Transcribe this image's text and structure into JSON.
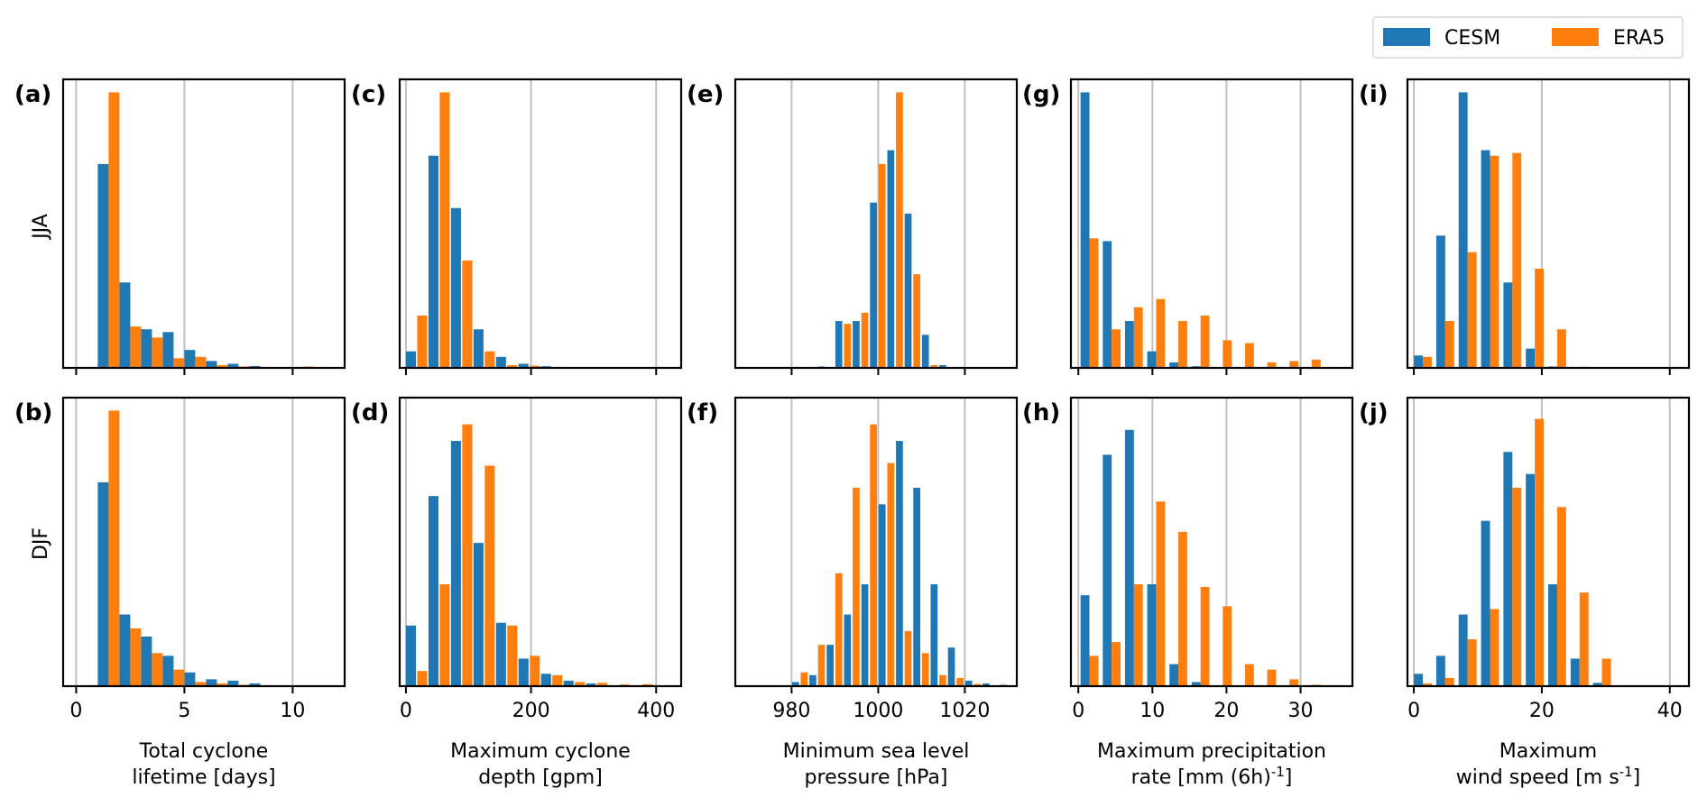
{
  "legend": {
    "entries": [
      {
        "name": "CESM",
        "color": "#1f77b4"
      },
      {
        "name": "ERA5",
        "color": "#ff7f0e"
      }
    ],
    "location": "top-right"
  },
  "colors": {
    "cesm": "#1f77b4",
    "era5": "#ff7f0e",
    "grid": "#c0c0c0"
  },
  "rows": [
    {
      "label": "JJA"
    },
    {
      "label": "DJF"
    }
  ],
  "chart_data": [
    {
      "panel": "(a)",
      "row": "JJA",
      "type": "bar",
      "xlabel": "Total cyclone\nlifetime [days]",
      "xlim": [
        -0.6,
        12.4
      ],
      "xticks": [
        0,
        5,
        10
      ],
      "ticklabels": [
        "",
        "",
        ""
      ],
      "xgrid": [
        0,
        5,
        10
      ],
      "ymax": 1.0,
      "width": 0.5,
      "series": [
        {
          "name": "CESM",
          "x": [
            1.25,
            2.25,
            3.25,
            4.25,
            5.25,
            6.25,
            7.25,
            8.25,
            9.25,
            10.25
          ],
          "values": [
            0.74,
            0.31,
            0.14,
            0.13,
            0.065,
            0.025,
            0.015,
            0.007,
            0.003,
            0.002
          ]
        },
        {
          "name": "ERA5",
          "x": [
            1.75,
            2.75,
            3.75,
            4.75,
            5.75,
            6.75,
            7.75,
            8.75,
            9.75,
            10.75
          ],
          "values": [
            1.0,
            0.15,
            0.11,
            0.035,
            0.04,
            0.01,
            0.005,
            0.003,
            0.003,
            0.005
          ]
        }
      ]
    },
    {
      "panel": "(b)",
      "row": "DJF",
      "type": "bar",
      "xlabel": "Total cyclone\nlifetime [days]",
      "xlim": [
        -0.6,
        12.4
      ],
      "xticks": [
        0,
        5,
        10
      ],
      "ticklabels": [
        "0",
        "5",
        "10"
      ],
      "xgrid": [
        0,
        5,
        10
      ],
      "ymax": 1.0,
      "width": 0.5,
      "series": [
        {
          "name": "CESM",
          "x": [
            1.25,
            2.25,
            3.25,
            4.25,
            5.25,
            6.25,
            7.25,
            8.25,
            9.25,
            10.25
          ],
          "values": [
            0.74,
            0.26,
            0.18,
            0.11,
            0.05,
            0.025,
            0.02,
            0.01,
            0.003,
            0.002
          ]
        },
        {
          "name": "ERA5",
          "x": [
            1.75,
            2.75,
            3.75,
            4.75,
            5.75,
            6.75,
            7.75,
            8.75,
            9.75,
            10.75
          ],
          "values": [
            1.0,
            0.21,
            0.12,
            0.06,
            0.015,
            0.01,
            0.005,
            0.003,
            0.002,
            0.001
          ]
        }
      ]
    },
    {
      "panel": "(c)",
      "row": "JJA",
      "type": "bar",
      "xlabel": "Maximum cyclone\ndepth [gpm]",
      "xlim": [
        -10,
        440
      ],
      "xticks": [
        0,
        200,
        400
      ],
      "ticklabels": [
        "",
        "",
        ""
      ],
      "xgrid": [
        0,
        200,
        400
      ],
      "ymax": 1.0,
      "width": 16,
      "series": [
        {
          "name": "CESM",
          "x": [
            8,
            44,
            80,
            116,
            152,
            188,
            224,
            260,
            296,
            332
          ],
          "values": [
            0.06,
            0.77,
            0.58,
            0.14,
            0.04,
            0.015,
            0.006,
            0.003,
            0.001,
            0.001
          ]
        },
        {
          "name": "ERA5",
          "x": [
            26,
            62,
            98,
            134,
            170,
            206,
            242,
            278,
            314,
            350
          ],
          "values": [
            0.19,
            1.0,
            0.39,
            0.06,
            0.01,
            0.008,
            0.003,
            0.001,
            0.001,
            0.001
          ]
        }
      ]
    },
    {
      "panel": "(d)",
      "row": "DJF",
      "type": "bar",
      "xlabel": "Maximum cyclone\ndepth [gpm]",
      "xlim": [
        -10,
        440
      ],
      "xticks": [
        0,
        200,
        400
      ],
      "ticklabels": [
        "0",
        "200",
        "400"
      ],
      "xgrid": [
        0,
        200,
        400
      ],
      "ymax": 1.0,
      "width": 16,
      "series": [
        {
          "name": "CESM",
          "x": [
            8,
            44,
            80,
            116,
            152,
            188,
            224,
            260,
            296,
            332
          ],
          "values": [
            0.22,
            0.69,
            0.89,
            0.52,
            0.23,
            0.1,
            0.045,
            0.02,
            0.01,
            0.003
          ]
        },
        {
          "name": "ERA5",
          "x": [
            26,
            62,
            98,
            134,
            170,
            206,
            242,
            278,
            314,
            350,
            386
          ],
          "values": [
            0.055,
            0.37,
            0.95,
            0.8,
            0.22,
            0.11,
            0.04,
            0.015,
            0.012,
            0.006,
            0.007
          ]
        }
      ]
    },
    {
      "panel": "(e)",
      "row": "JJA",
      "type": "bar",
      "xlabel": "Minimum sea level\npressure [hPa]",
      "xlim": [
        967,
        1032
      ],
      "xticks": [
        980,
        1000,
        1020
      ],
      "ticklabels": [
        "",
        "",
        ""
      ],
      "xgrid": [
        980,
        1000,
        1020
      ],
      "ymax": 1.0,
      "width": 1.6,
      "series": [
        {
          "name": "CESM",
          "x": [
            978.9,
            982.9,
            986.9,
            990.9,
            994.9,
            998.9,
            1002.9,
            1006.9,
            1010.9,
            1014.9,
            1018.9
          ],
          "values": [
            0.001,
            0.001,
            0.005,
            0.17,
            0.17,
            0.6,
            0.79,
            0.56,
            0.12,
            0.01,
            0.002
          ]
        },
        {
          "name": "ERA5",
          "x": [
            980.9,
            984.9,
            988.9,
            992.9,
            996.9,
            1000.9,
            1004.9,
            1008.9,
            1012.9,
            1016.9,
            1020.9
          ],
          "values": [
            0.001,
            0.001,
            0.002,
            0.16,
            0.2,
            0.74,
            1.0,
            0.34,
            0.01,
            0.001,
            0.001
          ]
        }
      ]
    },
    {
      "panel": "(f)",
      "row": "DJF",
      "type": "bar",
      "xlabel": "Minimum sea level\npressure [hPa]",
      "xlim": [
        967,
        1032
      ],
      "xticks": [
        980,
        1000,
        1020
      ],
      "ticklabels": [
        "980",
        "1000",
        "1020"
      ],
      "xgrid": [
        980,
        1000,
        1020
      ],
      "ymax": 1.0,
      "width": 1.6,
      "series": [
        {
          "name": "CESM",
          "x": [
            980.9,
            984.9,
            988.9,
            992.9,
            996.9,
            1000.9,
            1004.9,
            1008.9,
            1012.9,
            1016.9,
            1020.9,
            1024.9,
            1028.9
          ],
          "values": [
            0.015,
            0.04,
            0.15,
            0.26,
            0.37,
            0.66,
            0.89,
            0.72,
            0.37,
            0.14,
            0.02,
            0.01,
            0.005
          ]
        },
        {
          "name": "ERA5",
          "x": [
            982.9,
            986.9,
            990.9,
            994.9,
            998.9,
            1002.9,
            1006.9,
            1010.9,
            1014.9,
            1018.9,
            1022.9,
            1026.9
          ],
          "values": [
            0.05,
            0.15,
            0.41,
            0.72,
            0.95,
            0.81,
            0.2,
            0.12,
            0.04,
            0.03,
            0.008,
            0.003
          ]
        }
      ]
    },
    {
      "panel": "(g)",
      "row": "JJA",
      "type": "bar",
      "xlabel": "Maximum precipitation\nrate [mm (6h)$^{-1}$]",
      "xlim": [
        -1,
        37
      ],
      "xticks": [
        0,
        10,
        20,
        30
      ],
      "ticklabels": [
        "",
        "",
        "",
        ""
      ],
      "xgrid": [
        0,
        10,
        20,
        30
      ],
      "ymax": 1.0,
      "width": 1.2,
      "series": [
        {
          "name": "CESM",
          "x": [
            0.9,
            3.9,
            6.9,
            9.9,
            12.9,
            15.9,
            18.9,
            21.9,
            24.9,
            27.9,
            30.9
          ],
          "values": [
            1.0,
            0.46,
            0.17,
            0.06,
            0.02,
            0.006,
            0.003,
            0.002,
            0.001,
            0.001,
            0.001
          ]
        },
        {
          "name": "ERA5",
          "x": [
            2.1,
            5.1,
            8.1,
            11.1,
            14.1,
            17.1,
            20.1,
            23.1,
            26.1,
            29.1,
            32.1
          ],
          "values": [
            0.47,
            0.14,
            0.22,
            0.25,
            0.17,
            0.19,
            0.1,
            0.09,
            0.02,
            0.025,
            0.03
          ]
        }
      ]
    },
    {
      "panel": "(h)",
      "row": "DJF",
      "type": "bar",
      "xlabel": "Maximum precipitation\nrate [mm (6h)$^{-1}$]",
      "xlim": [
        -1,
        37
      ],
      "xticks": [
        0,
        10,
        20,
        30
      ],
      "ticklabels": [
        "0",
        "10",
        "20",
        "30"
      ],
      "xgrid": [
        0,
        10,
        20,
        30
      ],
      "ymax": 1.0,
      "width": 1.2,
      "series": [
        {
          "name": "CESM",
          "x": [
            0.9,
            3.9,
            6.9,
            9.9,
            12.9,
            15.9,
            18.9,
            21.9,
            24.9,
            27.9,
            30.9
          ],
          "values": [
            0.33,
            0.84,
            0.93,
            0.37,
            0.08,
            0.015,
            0.003,
            0.002,
            0.001,
            0.001,
            0.001
          ]
        },
        {
          "name": "ERA5",
          "x": [
            2.1,
            5.1,
            8.1,
            11.1,
            14.1,
            17.1,
            20.1,
            23.1,
            26.1,
            29.1,
            32.1
          ],
          "values": [
            0.11,
            0.16,
            0.37,
            0.67,
            0.56,
            0.36,
            0.29,
            0.08,
            0.06,
            0.025,
            0.005
          ]
        }
      ]
    },
    {
      "panel": "(i)",
      "row": "JJA",
      "type": "bar",
      "xlabel": "Maximum\nwind speed [m s$^{-1}$]",
      "xlim": [
        -1,
        43
      ],
      "xticks": [
        0,
        20,
        40
      ],
      "ticklabels": [
        "",
        "",
        ""
      ],
      "xgrid": [
        0,
        20,
        40
      ],
      "ymax": 1.0,
      "width": 1.4,
      "series": [
        {
          "name": "CESM",
          "x": [
            0.7,
            4.2,
            7.7,
            11.2,
            14.7,
            18.2,
            21.7,
            25.2,
            28.7
          ],
          "values": [
            0.045,
            0.48,
            1.0,
            0.79,
            0.31,
            0.07,
            0.005,
            0.002,
            0.001
          ]
        },
        {
          "name": "ERA5",
          "x": [
            2.1,
            5.6,
            9.1,
            12.6,
            16.1,
            19.6,
            23.1,
            26.6,
            30.1
          ],
          "values": [
            0.04,
            0.17,
            0.42,
            0.77,
            0.78,
            0.36,
            0.14,
            0.004,
            0.001
          ]
        }
      ]
    },
    {
      "panel": "(j)",
      "row": "DJF",
      "type": "bar",
      "xlabel": "Maximum\nwind speed [m s$^{-1}$]",
      "xlim": [
        -1,
        43
      ],
      "xticks": [
        0,
        20,
        40
      ],
      "ticklabels": [
        "0",
        "20",
        "40"
      ],
      "xgrid": [
        0,
        20,
        40
      ],
      "ymax": 1.0,
      "width": 1.4,
      "series": [
        {
          "name": "CESM",
          "x": [
            0.7,
            4.2,
            7.7,
            11.2,
            14.7,
            18.2,
            21.7,
            25.2,
            28.7
          ],
          "values": [
            0.045,
            0.11,
            0.26,
            0.6,
            0.85,
            0.77,
            0.37,
            0.1,
            0.012
          ]
        },
        {
          "name": "ERA5",
          "x": [
            2.1,
            5.6,
            9.1,
            12.6,
            16.1,
            19.6,
            23.1,
            26.6,
            30.1
          ],
          "values": [
            0.01,
            0.03,
            0.17,
            0.28,
            0.72,
            0.97,
            0.65,
            0.34,
            0.1
          ]
        }
      ]
    }
  ]
}
